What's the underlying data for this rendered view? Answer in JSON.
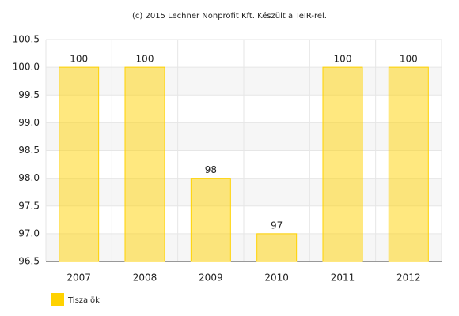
{
  "chart_data": {
    "type": "bar",
    "title": "(c) 2015 Lechner Nonprofit Kft. Készült a TeIR-rel.",
    "categories": [
      "2007",
      "2008",
      "2009",
      "2010",
      "2011",
      "2012"
    ],
    "series": [
      {
        "name": "Tiszalök",
        "color": "#ffd200",
        "values": [
          100,
          100,
          98,
          97,
          100,
          100
        ]
      }
    ],
    "ylim": [
      96.5,
      100.5
    ],
    "yticks": [
      96.5,
      {
        "value": 97,
        "label": "97.0"
      },
      97.5,
      {
        "value": 98,
        "label": "98.0"
      },
      98.5,
      {
        "value": 99,
        "label": "99.0"
      },
      99.5,
      {
        "value": 100,
        "label": "100.0"
      },
      100.5
    ],
    "grid": true,
    "legend": "bottom-left"
  }
}
